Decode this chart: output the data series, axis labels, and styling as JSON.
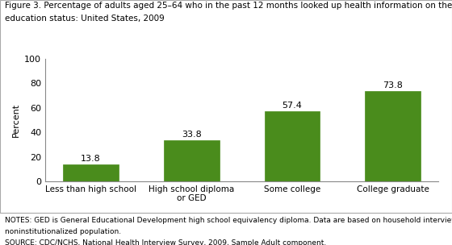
{
  "categories": [
    "Less than high school",
    "High school diploma\nor GED",
    "Some college",
    "College graduate"
  ],
  "values": [
    13.8,
    33.8,
    57.4,
    73.8
  ],
  "bar_color": "#4a8c1c",
  "ylabel": "Percent",
  "ylim": [
    0,
    100
  ],
  "yticks": [
    0,
    20,
    40,
    60,
    80,
    100
  ],
  "title_line1": "Figure 3. Percentage of adults aged 25–64 who in the past 12 months looked up health information on the Internet, by",
  "title_line2": "education status: United States, 2009",
  "title_fontsize": 7.5,
  "notes_line1": "NOTES: GED is General Educational Development high school equivalency diploma. Data are based on household interviews of a sample of the civilian",
  "notes_line2": "noninstitutionalized population.",
  "source_line": "SOURCE: CDC/NCHS, National Health Interview Survey, 2009, Sample Adult component.",
  "notes_fontsize": 6.5,
  "bar_width": 0.55,
  "value_label_fontsize": 8,
  "ylabel_fontsize": 8,
  "xtick_fontsize": 7.5,
  "ytick_fontsize": 8
}
